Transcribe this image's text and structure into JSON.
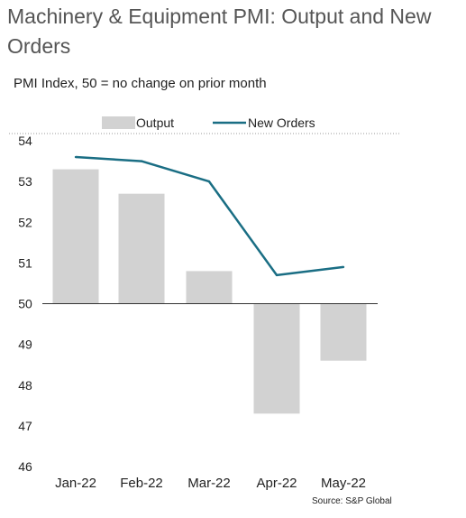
{
  "title": "Machinery & Equipment PMI: Output and New Orders",
  "subtitle": "PMI Index, 50 = no change on prior month",
  "source": "Source: S&P Global",
  "colors": {
    "output_bar": "#d2d2d2",
    "new_orders_line": "#1a6e84",
    "axis_line": "#333333",
    "legend_separator": "#999999"
  },
  "chart_data": {
    "type": "bar",
    "categories": [
      "Jan-22",
      "Feb-22",
      "Mar-22",
      "Apr-22",
      "May-22"
    ],
    "series": [
      {
        "name": "Output",
        "type": "bar",
        "values": [
          53.3,
          52.7,
          50.8,
          47.3,
          48.6
        ]
      },
      {
        "name": "New Orders",
        "type": "line",
        "values": [
          53.6,
          53.5,
          53.0,
          50.7,
          50.9
        ]
      }
    ],
    "ylim": [
      46,
      54
    ],
    "yticks": [
      54,
      53,
      52,
      51,
      50,
      49,
      48,
      47,
      46
    ],
    "baseline": 50,
    "legend_position": "top",
    "grid": false
  }
}
